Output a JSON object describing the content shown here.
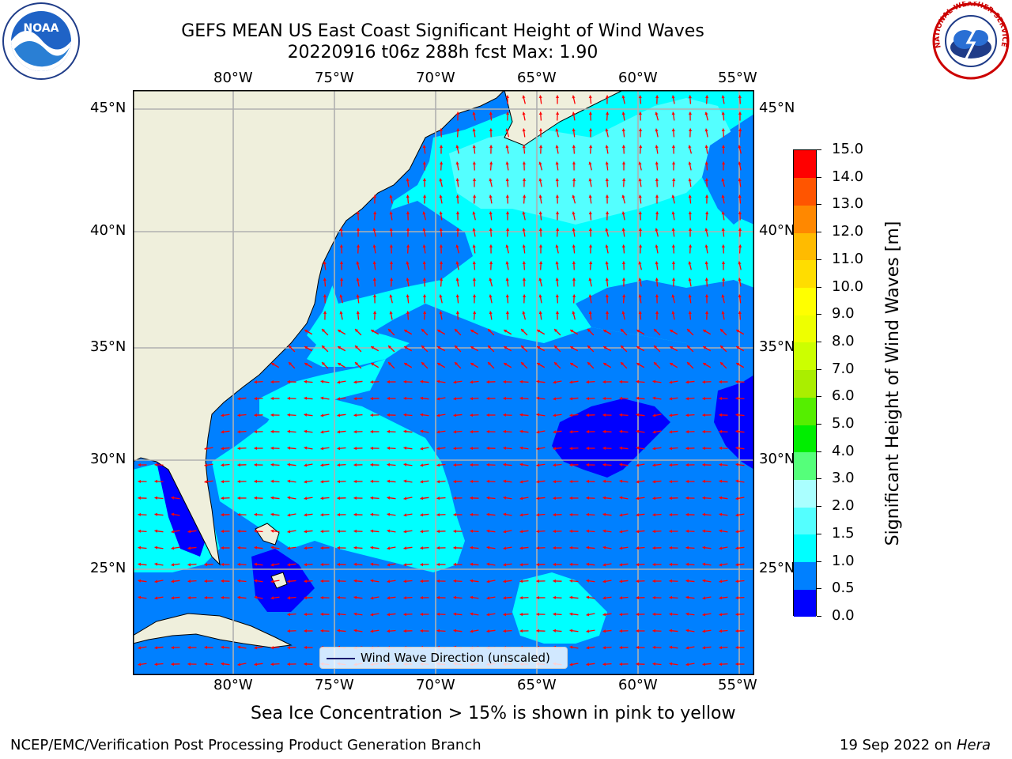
{
  "title": {
    "line1": "GEFS MEAN US East Coast Significant Height of Wind Waves",
    "line2": "20220916 t06z 288h fcst   Max: 1.90"
  },
  "logos": {
    "left_icon": "noaa-logo-icon",
    "left_text": "NOAA",
    "right_icon": "national-weather-service-logo-icon",
    "right_text": "NATIONAL WEATHER SERVICE"
  },
  "map": {
    "projection": "plate carree",
    "lon_ticks": [
      "80°W",
      "75°W",
      "70°W",
      "65°W",
      "60°W",
      "55°W"
    ],
    "lat_ticks": [
      "45°N",
      "40°N",
      "35°N",
      "30°N",
      "25°N"
    ],
    "land_color": "#efefdc",
    "coast_color": "#000000",
    "grid_color": "#b0b0b0",
    "arrow_color": "#ff0000",
    "legend_label": "Wind Wave Direction (unscaled)"
  },
  "colorbar": {
    "label": "Significant Height of Wind Waves [m]",
    "tick_labels": [
      "0.0",
      "0.5",
      "1.0",
      "1.5",
      "2.0",
      "3.0",
      "4.0",
      "5.0",
      "6.0",
      "7.0",
      "8.0",
      "9.0",
      "10.0",
      "11.0",
      "12.0",
      "13.0",
      "14.0",
      "15.0"
    ],
    "colors": [
      "#0000ff",
      "#0080ff",
      "#00ffff",
      "#54ffff",
      "#aaffff",
      "#55ff7a",
      "#00ee00",
      "#55ee00",
      "#aaee00",
      "#ccff00",
      "#eeff00",
      "#ffff00",
      "#ffdd00",
      "#ffbb00",
      "#ff8800",
      "#ff5500",
      "#ff0000"
    ]
  },
  "note": "Sea Ice Concentration > 15% is shown in pink to yellow",
  "footer": {
    "left": "NCEP/EMC/Verification Post Processing Product Generation Branch",
    "right_prefix": "19 Sep 2022 on ",
    "right_host": "Hera"
  }
}
